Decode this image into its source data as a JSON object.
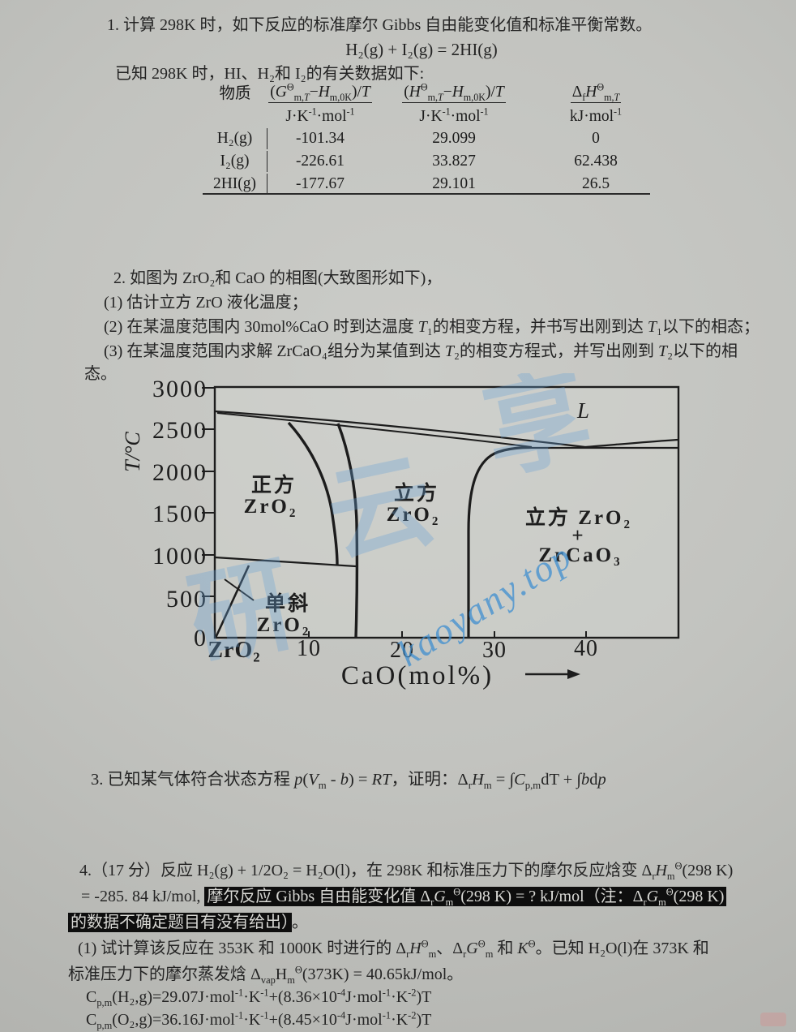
{
  "q1": {
    "line1": "1. 计算 298K 时，如下反应的标准摩尔 Gibbs 自由能变化值和标准平衡常数。",
    "formula": "H₂(g) + I₂(g) = 2HI(g)",
    "line2": "已知 298K 时，HI、H₂和 I₂的有关数据如下:",
    "table": {
      "col_species": "物质",
      "col1_html": "(<i>G</i><sup>Θ</sup><sub>m,<i>T</i></sub>−<i>H</i><sub>m,0K</sub>)/<i>T</i>",
      "col2_html": "(<i>H</i><sup>Θ</sup><sub>m,<i>T</i></sub>−<i>H</i><sub>m,0K</sub>)/<i>T</i>",
      "col3_html": "Δ<sub>f</sub><i>H</i><sup>Θ</sup><sub>m,<i>T</i></sub>",
      "unit1_html": "J·K<sup>-1</sup>·mol<sup>-1</sup>",
      "unit2_html": "J·K<sup>-1</sup>·mol<sup>-1</sup>",
      "unit3_html": "kJ·mol<sup>-1</sup>",
      "rows": [
        {
          "species": "H₂(g)",
          "v1": "-101.34",
          "v2": "29.099",
          "v3": "0"
        },
        {
          "species": "I₂(g)",
          "v1": "-226.61",
          "v2": "33.827",
          "v3": "62.438"
        },
        {
          "species": "2HI(g)",
          "v1": "-177.67",
          "v2": "29.101",
          "v3": "26.5"
        }
      ]
    }
  },
  "q2": {
    "line1": "2. 如图为 ZrO₂和 CaO 的相图(大致图形如下)，",
    "item1": "(1) 估计立方 ZrO 液化温度；",
    "item2_html": "(2) 在某温度范围内 30mol%CaO 时到达温度 <i>T</i>₁的相变方程，并书写出刚到达 <i>T</i>₁以下的相态；",
    "item3a_html": "(3) 在某温度范围内求解 ZrCaO₄组分为某值到达 <i>T</i>₂的相变方程式，并写出刚到 <i>T</i>₂以下的相",
    "item3b": "态。"
  },
  "chart": {
    "y_axis_label": "T/°C",
    "y_ticks": [
      "3000",
      "2500",
      "2000",
      "1500",
      "1000",
      "500",
      "0"
    ],
    "x_ticks": [
      "ZrO₂",
      "10",
      "20",
      "30",
      "40"
    ],
    "x_axis_label": "CaO(mol%)",
    "regions": {
      "tetragonal_1": "正方",
      "tetragonal_2": "ZrO₂",
      "cubic_1": "立方",
      "cubic_2": "ZrO₂",
      "two_phase_1": "立方 ZrO₂",
      "two_phase_plus": "+",
      "two_phase_2": "ZrCaO₃",
      "monoclinic_1": "单斜",
      "monoclinic_2": "ZrO₂",
      "liquid": "L"
    },
    "watermark": {
      "chars": [
        "研",
        "云",
        "享"
      ],
      "url": "kaoyany.top"
    }
  },
  "chart_data": {
    "type": "line",
    "title": "ZrO₂–CaO 相图 (phase diagram, approximate)",
    "xlabel": "CaO(mol%)",
    "ylabel": "T/°C",
    "xlim": [
      0,
      50
    ],
    "ylim": [
      0,
      3000
    ],
    "x_tick_values": [
      0,
      10,
      20,
      30,
      40
    ],
    "y_tick_values": [
      0,
      500,
      1000,
      1500,
      2000,
      2500,
      3000
    ],
    "grid": false,
    "legend_position": "none",
    "region_labels": [
      "正方 ZrO₂",
      "立方 ZrO₂",
      "立方 ZrO₂ + ZrCaO₃",
      "单斜 ZrO₂",
      "L"
    ],
    "series": [
      {
        "name": "liquidus",
        "points": [
          [
            0,
            2710
          ],
          [
            10,
            2630
          ],
          [
            20,
            2520
          ],
          [
            30,
            2400
          ],
          [
            39.8,
            2280
          ],
          [
            45,
            2330
          ],
          [
            50,
            2375
          ]
        ]
      },
      {
        "name": "solidus",
        "points": [
          [
            0,
            2700
          ],
          [
            10,
            2600
          ],
          [
            20,
            2470
          ],
          [
            30,
            2330
          ],
          [
            34,
            2280
          ]
        ]
      },
      {
        "name": "eutectic_horizontal",
        "points": [
          [
            34,
            2280
          ],
          [
            50,
            2280
          ]
        ]
      },
      {
        "name": "cubic_two_phase_boundary",
        "points": [
          [
            27.2,
            0
          ],
          [
            27.2,
            1300
          ],
          [
            28,
            1800
          ],
          [
            30,
            2100
          ],
          [
            34,
            2280
          ]
        ]
      },
      {
        "name": "tetragonal_right_boundary_left_line",
        "points": [
          [
            8,
            2570
          ],
          [
            11,
            2000
          ],
          [
            12.8,
            1300
          ],
          [
            13.1,
            870
          ]
        ]
      },
      {
        "name": "tetragonal_cubic_boundary_right_line",
        "points": [
          [
            13.2,
            2560
          ],
          [
            14.6,
            1800
          ],
          [
            15.2,
            1100
          ],
          [
            15.1,
            0
          ]
        ]
      },
      {
        "name": "monoclinic_transition_horizontal",
        "points": [
          [
            0,
            965
          ],
          [
            15.1,
            860
          ]
        ]
      },
      {
        "name": "monoclinic_slant",
        "points": [
          [
            0.1,
            0
          ],
          [
            3.6,
            865
          ]
        ]
      }
    ]
  },
  "q3": {
    "line_html": "3. 已知某气体符合状态方程 <i>p</i>(<i>V</i><sub>m</sub> - <i>b</i>) = <i>RT</i>，证明：Δ<sub>r</sub><i>H</i><sub>m</sub> = ∫<i>C</i><sub>p,m</sub>dT + ∫<i>b</i>d<i>p</i>"
  },
  "q4": {
    "line1_html": "4.（17 分）反应 H₂(g) + 1/2O₂ = H₂O(l)，在 298K 和标准压力下的摩尔反应焓变 Δ<sub>r</sub><i>H</i><sub>m</sub><sup>Θ</sup>(298 K)",
    "line2_pre": "= -285. 84 kJ/mol, ",
    "line2_hl_html": "摩尔反应 Gibbs 自由能变化值 Δ<sub>r</sub><i>G</i><sub>m</sub><sup>Θ</sup>(298 K) = ? kJ/mol（注：Δ<sub>r</sub><i>G</i><sub>m</sub><sup>Θ</sup>(298 K)",
    "line3_hl": "的数据不确定题目有没有给出）",
    "line3_post": "。",
    "line4_html": "(1) 试计算该反应在 353K 和 1000K 时进行的 Δ<sub>r</sub><i>H</i><sup>Θ</sup><sub>m</sub>、Δ<sub>r</sub><i>G</i><sup>Θ</sup><sub>m</sub> 和 <i>K</i><sup>Θ</sup>。已知 H₂O(l)在 373K 和",
    "line5_html": "标准压力下的摩尔蒸发焓 Δ<sub>vap</sub>H<sub>m</sub><sup>Θ</sup>(373K) = 40.65kJ/mol。",
    "line6_html": "C<sub>p,m</sub>(H₂,g)=29.07J·mol<sup>-1</sup>·K<sup>-1</sup>+(8.36×10<sup>-4</sup>J·mol<sup>-1</sup>·K<sup>-2</sup>)T",
    "line7_html": "C<sub>p,m</sub>(O₂,g)=36.16J·mol<sup>-1</sup>·K<sup>-1</sup>+(8.45×10<sup>-4</sup>J·mol<sup>-1</sup>·K<sup>-2</sup>)T"
  }
}
